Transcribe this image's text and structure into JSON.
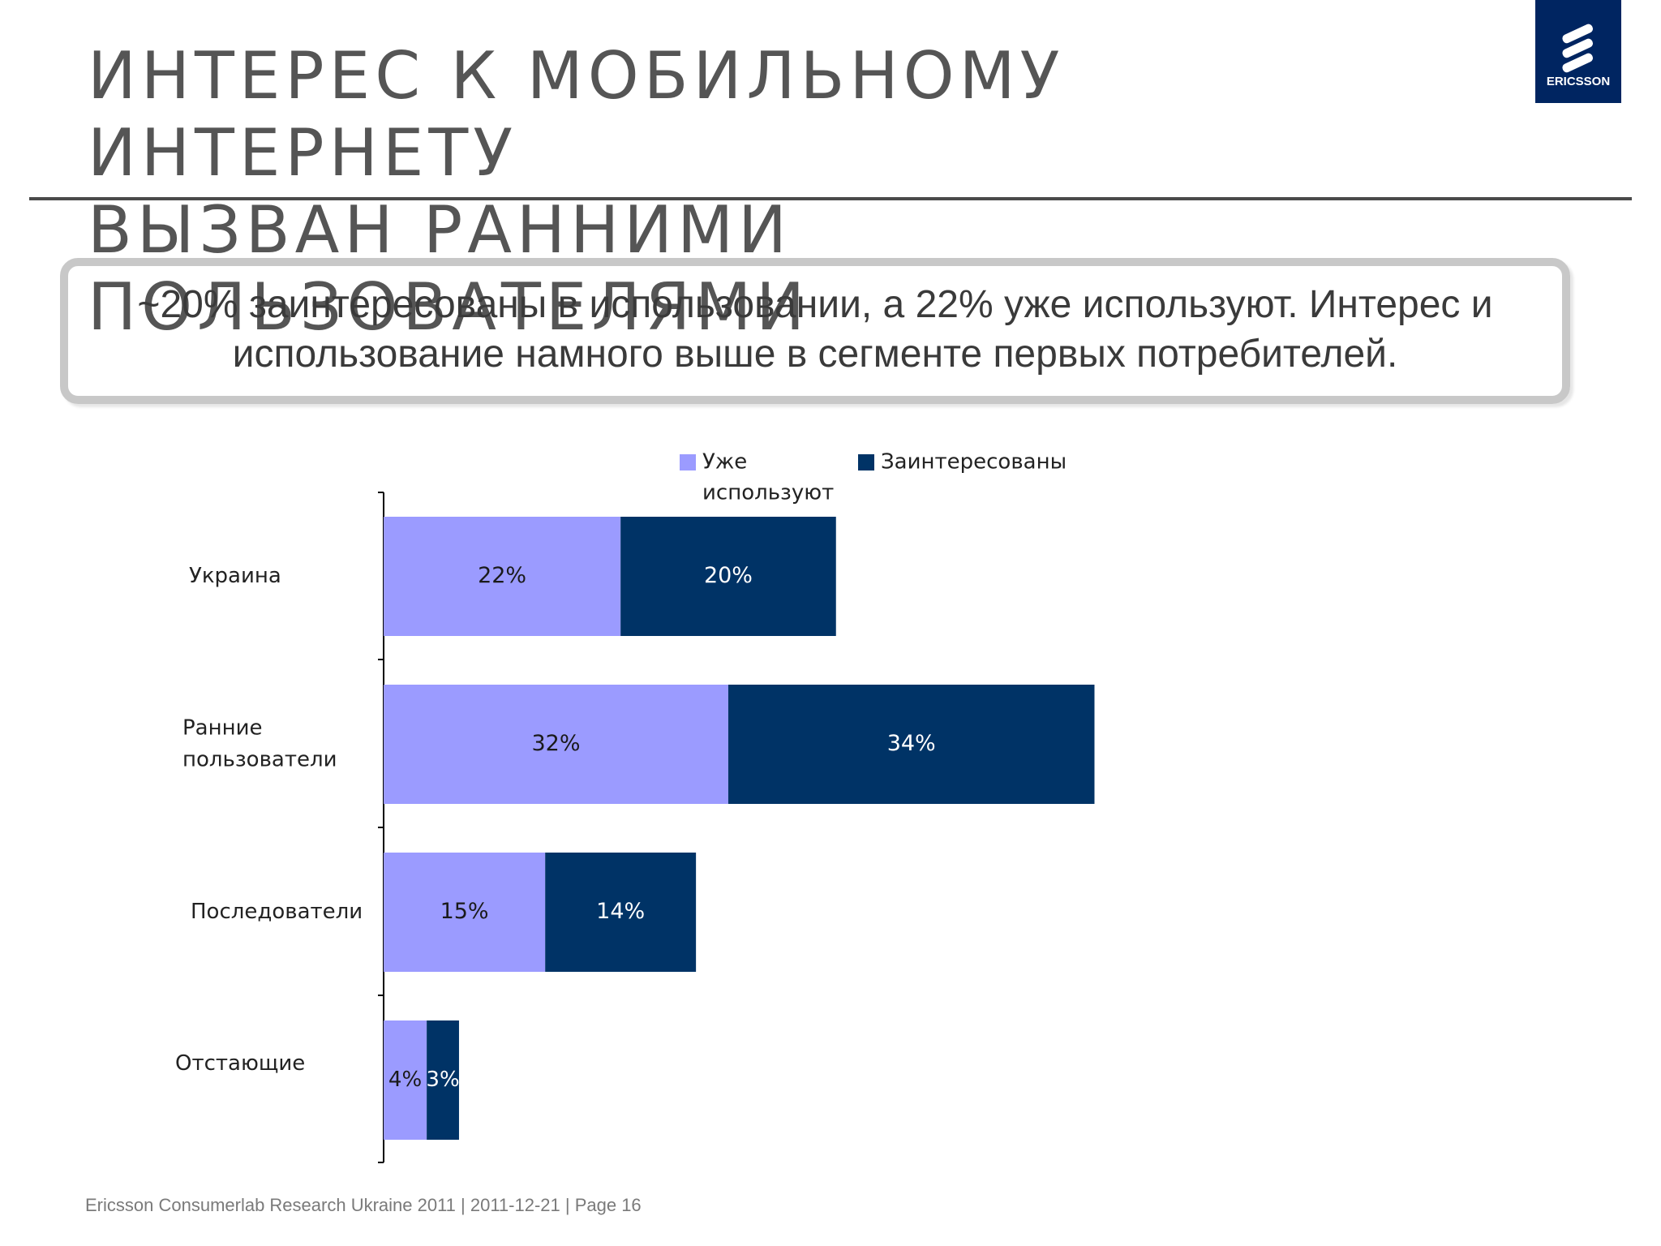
{
  "slide": {
    "title_line1": "ИНТЕРЕС К МОБИЛЬНОМУ ИНТЕРНЕТУ",
    "title_line2": "ВЫЗВАН РАННИМИ ПОЛЬЗОВАТЕЛЯМИ",
    "callout_line1": "~20% заинтересованы в использовании, а 22% уже используют. Интерес и",
    "callout_line2": "использование намного выше в сегменте первых потребителей.",
    "logo_text": "ERICSSON",
    "footer": "Ericsson Consumerlab Research Ukraine 2011  |  2011-12-21  |  Page 16"
  },
  "colors": {
    "series_used": "#9b9bff",
    "series_interested": "#003366",
    "brand": "#002561"
  },
  "chart_data": {
    "type": "bar",
    "orientation": "horizontal",
    "stacked": true,
    "categories": [
      [
        "Украина"
      ],
      [
        "Ранние",
        "пользователи"
      ],
      [
        "Последователи"
      ],
      [
        "Отстающие"
      ]
    ],
    "series": [
      {
        "name": [
          "Уже",
          "используют"
        ],
        "values": [
          22,
          32,
          15,
          4
        ],
        "labels": [
          "22%",
          "32%",
          "15%",
          "4%"
        ],
        "color": "#9b9bff",
        "label_color": "#1a1a1a"
      },
      {
        "name": [
          "Заинтересованы"
        ],
        "values": [
          20,
          34,
          14,
          3
        ],
        "labels": [
          "20%",
          "34%",
          "14%",
          "3%"
        ],
        "color": "#003366",
        "label_color": "#ffffff"
      }
    ],
    "xlim": [
      0,
      80
    ],
    "legend_position": "top",
    "grid": false,
    "title": "",
    "xlabel": "",
    "ylabel": ""
  }
}
